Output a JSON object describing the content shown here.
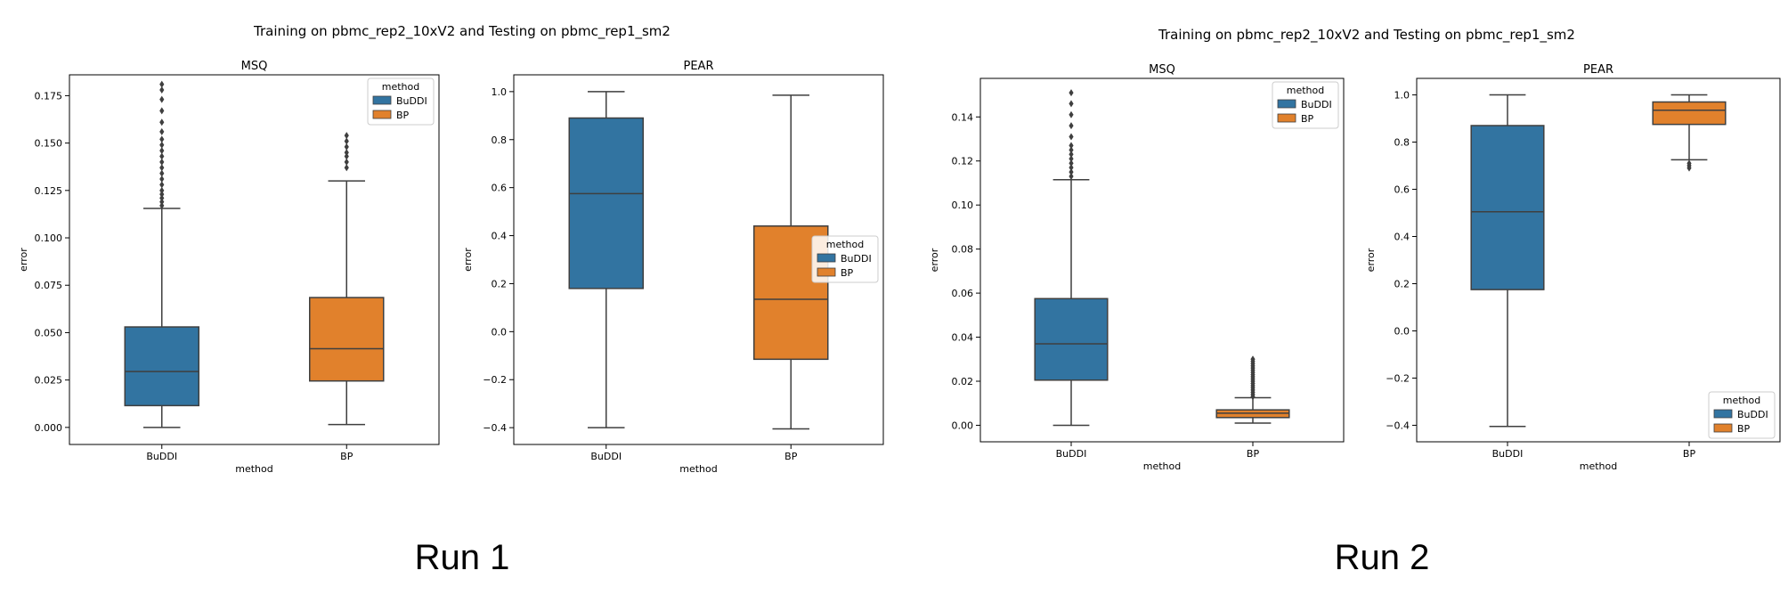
{
  "runs": [
    {
      "label": "Run 1",
      "suptitle": "Training on pbmc_rep2_10xV2 and Testing on pbmc_rep1_sm2"
    },
    {
      "label": "Run 2",
      "suptitle": "Training on pbmc_rep2_10xV2 and Testing on pbmc_rep1_sm2"
    }
  ],
  "colors": {
    "BuDDI": "#3274a1",
    "BP": "#e1812c",
    "line": "#3f3f3f"
  },
  "chart_data": [
    {
      "type": "box",
      "run": "Run 1",
      "title": "MSQ",
      "xlabel": "method",
      "ylabel": "error",
      "categories": [
        "BuDDI",
        "BP"
      ],
      "ylim": [
        -0.009,
        0.186
      ],
      "yticks": [
        0.0,
        0.025,
        0.05,
        0.075,
        0.1,
        0.125,
        0.15,
        0.175
      ],
      "ytick_labels": [
        "0.000",
        "0.025",
        "0.050",
        "0.075",
        "0.100",
        "0.125",
        "0.150",
        "0.175"
      ],
      "legend": {
        "title": "method",
        "entries": [
          "BuDDI",
          "BP"
        ],
        "position": "top-right"
      },
      "boxes": [
        {
          "category": "BuDDI",
          "whisker_low": 0.0,
          "q1": 0.0115,
          "median": 0.0295,
          "q3": 0.053,
          "whisker_high": 0.1155,
          "outliers": [
            0.117,
            0.119,
            0.121,
            0.123,
            0.125,
            0.128,
            0.131,
            0.134,
            0.137,
            0.14,
            0.143,
            0.146,
            0.149,
            0.152,
            0.156,
            0.161,
            0.167,
            0.173,
            0.178,
            0.181
          ]
        },
        {
          "category": "BP",
          "whisker_low": 0.0015,
          "q1": 0.0245,
          "median": 0.0415,
          "q3": 0.0685,
          "whisker_high": 0.13,
          "outliers": [
            0.137,
            0.14,
            0.143,
            0.145,
            0.148,
            0.151,
            0.154
          ]
        }
      ]
    },
    {
      "type": "box",
      "run": "Run 1",
      "title": "PEAR",
      "xlabel": "method",
      "ylabel": "error",
      "categories": [
        "BuDDI",
        "BP"
      ],
      "ylim": [
        -0.47,
        1.07
      ],
      "yticks": [
        -0.4,
        -0.2,
        0.0,
        0.2,
        0.4,
        0.6,
        0.8,
        1.0
      ],
      "ytick_labels": [
        "−0.4",
        "−0.2",
        "0.0",
        "0.2",
        "0.4",
        "0.6",
        "0.8",
        "1.0"
      ],
      "legend": {
        "title": "method",
        "entries": [
          "BuDDI",
          "BP"
        ],
        "position": "center-right"
      },
      "boxes": [
        {
          "category": "BuDDI",
          "whisker_low": -0.4,
          "q1": 0.18,
          "median": 0.575,
          "q3": 0.89,
          "whisker_high": 1.0,
          "outliers": []
        },
        {
          "category": "BP",
          "whisker_low": -0.405,
          "q1": -0.115,
          "median": 0.135,
          "q3": 0.44,
          "whisker_high": 0.985,
          "outliers": []
        }
      ]
    },
    {
      "type": "box",
      "run": "Run 2",
      "title": "MSQ",
      "xlabel": "method",
      "ylabel": "error",
      "categories": [
        "BuDDI",
        "BP"
      ],
      "ylim": [
        -0.0075,
        0.1575
      ],
      "yticks": [
        0.0,
        0.02,
        0.04,
        0.06,
        0.08,
        0.1,
        0.12,
        0.14
      ],
      "ytick_labels": [
        "0.00",
        "0.02",
        "0.04",
        "0.06",
        "0.08",
        "0.10",
        "0.12",
        "0.14"
      ],
      "legend": {
        "title": "method",
        "entries": [
          "BuDDI",
          "BP"
        ],
        "position": "top-right"
      },
      "boxes": [
        {
          "category": "BuDDI",
          "whisker_low": 0.0,
          "q1": 0.0205,
          "median": 0.037,
          "q3": 0.0575,
          "whisker_high": 0.1115,
          "outliers": [
            0.113,
            0.115,
            0.117,
            0.119,
            0.121,
            0.123,
            0.125,
            0.127,
            0.131,
            0.136,
            0.141,
            0.146,
            0.151
          ]
        },
        {
          "category": "BP",
          "whisker_low": 0.001,
          "q1": 0.0035,
          "median": 0.0055,
          "q3": 0.007,
          "whisker_high": 0.0125,
          "outliers": [
            0.013,
            0.014,
            0.015,
            0.016,
            0.017,
            0.018,
            0.019,
            0.02,
            0.021,
            0.022,
            0.023,
            0.024,
            0.025,
            0.026,
            0.027,
            0.028,
            0.029,
            0.03
          ]
        }
      ]
    },
    {
      "type": "box",
      "run": "Run 2",
      "title": "PEAR",
      "xlabel": "method",
      "ylabel": "error",
      "categories": [
        "BuDDI",
        "BP"
      ],
      "ylim": [
        -0.47,
        1.07
      ],
      "yticks": [
        -0.4,
        -0.2,
        0.0,
        0.2,
        0.4,
        0.6,
        0.8,
        1.0
      ],
      "ytick_labels": [
        "−0.4",
        "−0.2",
        "0.0",
        "0.2",
        "0.4",
        "0.6",
        "0.8",
        "1.0"
      ],
      "legend": {
        "title": "method",
        "entries": [
          "BuDDI",
          "BP"
        ],
        "position": "bottom-right"
      },
      "boxes": [
        {
          "category": "BuDDI",
          "whisker_low": -0.405,
          "q1": 0.175,
          "median": 0.505,
          "q3": 0.87,
          "whisker_high": 1.0,
          "outliers": []
        },
        {
          "category": "BP",
          "whisker_low": 0.725,
          "q1": 0.875,
          "median": 0.935,
          "q3": 0.97,
          "whisker_high": 1.0,
          "outliers": [
            0.69,
            0.7,
            0.71
          ]
        }
      ]
    }
  ]
}
